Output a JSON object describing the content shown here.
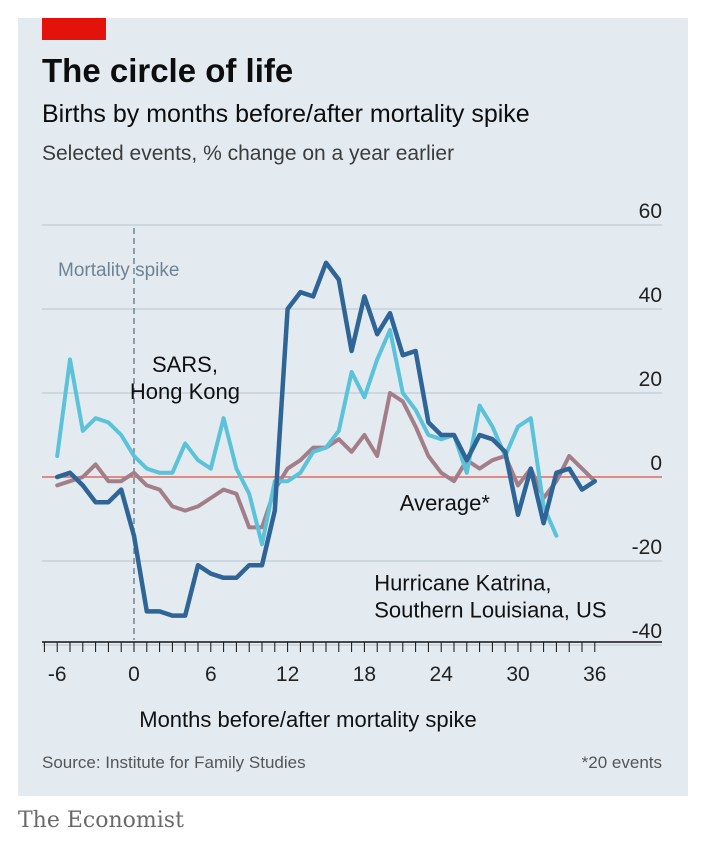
{
  "header": {
    "title": "The circle of life",
    "subtitle": "Births by months before/after mortality spike",
    "subsubtitle": "Selected events, % change on a year earlier"
  },
  "footer": {
    "source": "Source: Institute for Family Studies",
    "footnote": "*20 events",
    "brand": "The Economist"
  },
  "colors": {
    "background": "#e3ebf1",
    "accent_red": "#e3120b",
    "katrina": "#2e6496",
    "sars": "#5bc2da",
    "average": "#a37e89",
    "zero_line": "#e06b5e",
    "grid": "#b7c3cc",
    "spike_line": "#6e8494"
  },
  "chart_data": {
    "type": "line",
    "title": "The circle of life",
    "xlabel": "Months before/after mortality spike",
    "ylabel": "",
    "xlim": [
      -7,
      37
    ],
    "ylim": [
      -40,
      60
    ],
    "x_ticks": [
      -6,
      0,
      6,
      12,
      18,
      24,
      30,
      36
    ],
    "y_ticks": [
      60,
      40,
      20,
      0,
      -20,
      -40
    ],
    "grid": true,
    "zero_line": true,
    "reference_line": {
      "x": 0,
      "label": "Mortality spike"
    },
    "series": [
      {
        "name": "Hurricane Katrina, Southern Louisiana, US",
        "color": "#2e6496",
        "x": [
          -6,
          -5,
          -4,
          -3,
          -2,
          -1,
          0,
          1,
          2,
          3,
          4,
          5,
          6,
          7,
          8,
          9,
          10,
          11,
          12,
          13,
          14,
          15,
          16,
          17,
          18,
          19,
          20,
          21,
          22,
          23,
          24,
          25,
          26,
          27,
          28,
          29,
          30,
          31,
          32,
          33,
          34,
          35,
          36
        ],
        "y": [
          0,
          1,
          -2,
          -6,
          -6,
          -3,
          -14,
          -32,
          -32,
          -33,
          -33,
          -21,
          -23,
          -24,
          -24,
          -21,
          -21,
          -8,
          40,
          44,
          43,
          51,
          47,
          30,
          43,
          34,
          39,
          29,
          30,
          13,
          10,
          10,
          4,
          10,
          9,
          6,
          -9,
          2,
          -11,
          1,
          2,
          -3,
          -1
        ]
      },
      {
        "name": "SARS, Hong Kong",
        "color": "#5bc2da",
        "x": [
          -6,
          -5,
          -4,
          -3,
          -2,
          -1,
          0,
          1,
          2,
          3,
          4,
          5,
          6,
          7,
          8,
          9,
          10,
          11,
          12,
          13,
          14,
          15,
          16,
          17,
          18,
          19,
          20,
          21,
          22,
          23,
          24,
          25,
          26,
          27,
          28,
          29,
          30,
          31,
          32,
          33
        ],
        "y": [
          5,
          28,
          11,
          14,
          13,
          10,
          5,
          2,
          1,
          1,
          8,
          4,
          2,
          14,
          2,
          -4,
          -16,
          -1,
          -1,
          1,
          6,
          7,
          11,
          25,
          19,
          28,
          35,
          20,
          16,
          10,
          9,
          10,
          1,
          17,
          12,
          5,
          12,
          14,
          -7,
          -14
        ]
      },
      {
        "name": "Average*",
        "color": "#a37e89",
        "x": [
          -6,
          -5,
          -4,
          -3,
          -2,
          -1,
          0,
          1,
          2,
          3,
          4,
          5,
          6,
          7,
          8,
          9,
          10,
          11,
          12,
          13,
          14,
          15,
          16,
          17,
          18,
          19,
          20,
          21,
          22,
          23,
          24,
          25,
          26,
          27,
          28,
          29,
          30,
          31,
          32,
          33,
          34,
          35,
          36
        ],
        "y": [
          -2,
          -1,
          0,
          3,
          -1,
          -1,
          1,
          -2,
          -3,
          -7,
          -8,
          -7,
          -5,
          -3,
          -4,
          -12,
          -12,
          -3,
          2,
          4,
          7,
          7,
          9,
          6,
          10,
          5,
          20,
          18,
          12,
          5,
          1,
          -1,
          4,
          2,
          4,
          5,
          -2,
          2,
          -5,
          -1,
          5,
          2,
          -1
        ]
      }
    ],
    "annotations": [
      {
        "text_lines": [
          "SARS,",
          "Hong Kong"
        ],
        "x": 3.2,
        "y": 25
      },
      {
        "text_lines": [
          "Average*"
        ],
        "x": 21,
        "y": -8
      },
      {
        "text_lines": [
          "Hurricane Katrina,",
          "Southern Louisiana, US"
        ],
        "x": 19,
        "y": -27
      }
    ]
  }
}
